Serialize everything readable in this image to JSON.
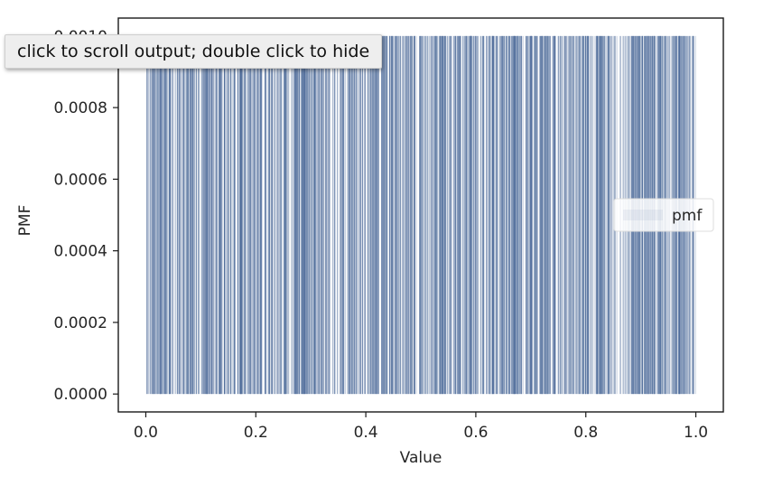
{
  "output_prompt": {
    "tooltip_text": "click to scroll output; double click to hide"
  },
  "chart_data": {
    "type": "bar",
    "xlabel": "Value",
    "ylabel": "PMF",
    "xlim": [
      -0.05,
      1.05
    ],
    "ylim": [
      -5e-05,
      0.00105
    ],
    "x_ticks": [
      "0.0",
      "0.2",
      "0.4",
      "0.6",
      "0.8",
      "1.0"
    ],
    "y_ticks": [
      "0.0000",
      "0.0002",
      "0.0004",
      "0.0006",
      "0.0008",
      "0.0010"
    ],
    "grid": false,
    "legend": {
      "entries": [
        "pmf"
      ],
      "placement": "center-right"
    },
    "bar_color": "#4c6a99",
    "series": [
      {
        "name": "pmf",
        "value_per_outcome": 0.001,
        "n_outcomes": 1000,
        "x_range": [
          0.0,
          1.0
        ]
      }
    ]
  }
}
